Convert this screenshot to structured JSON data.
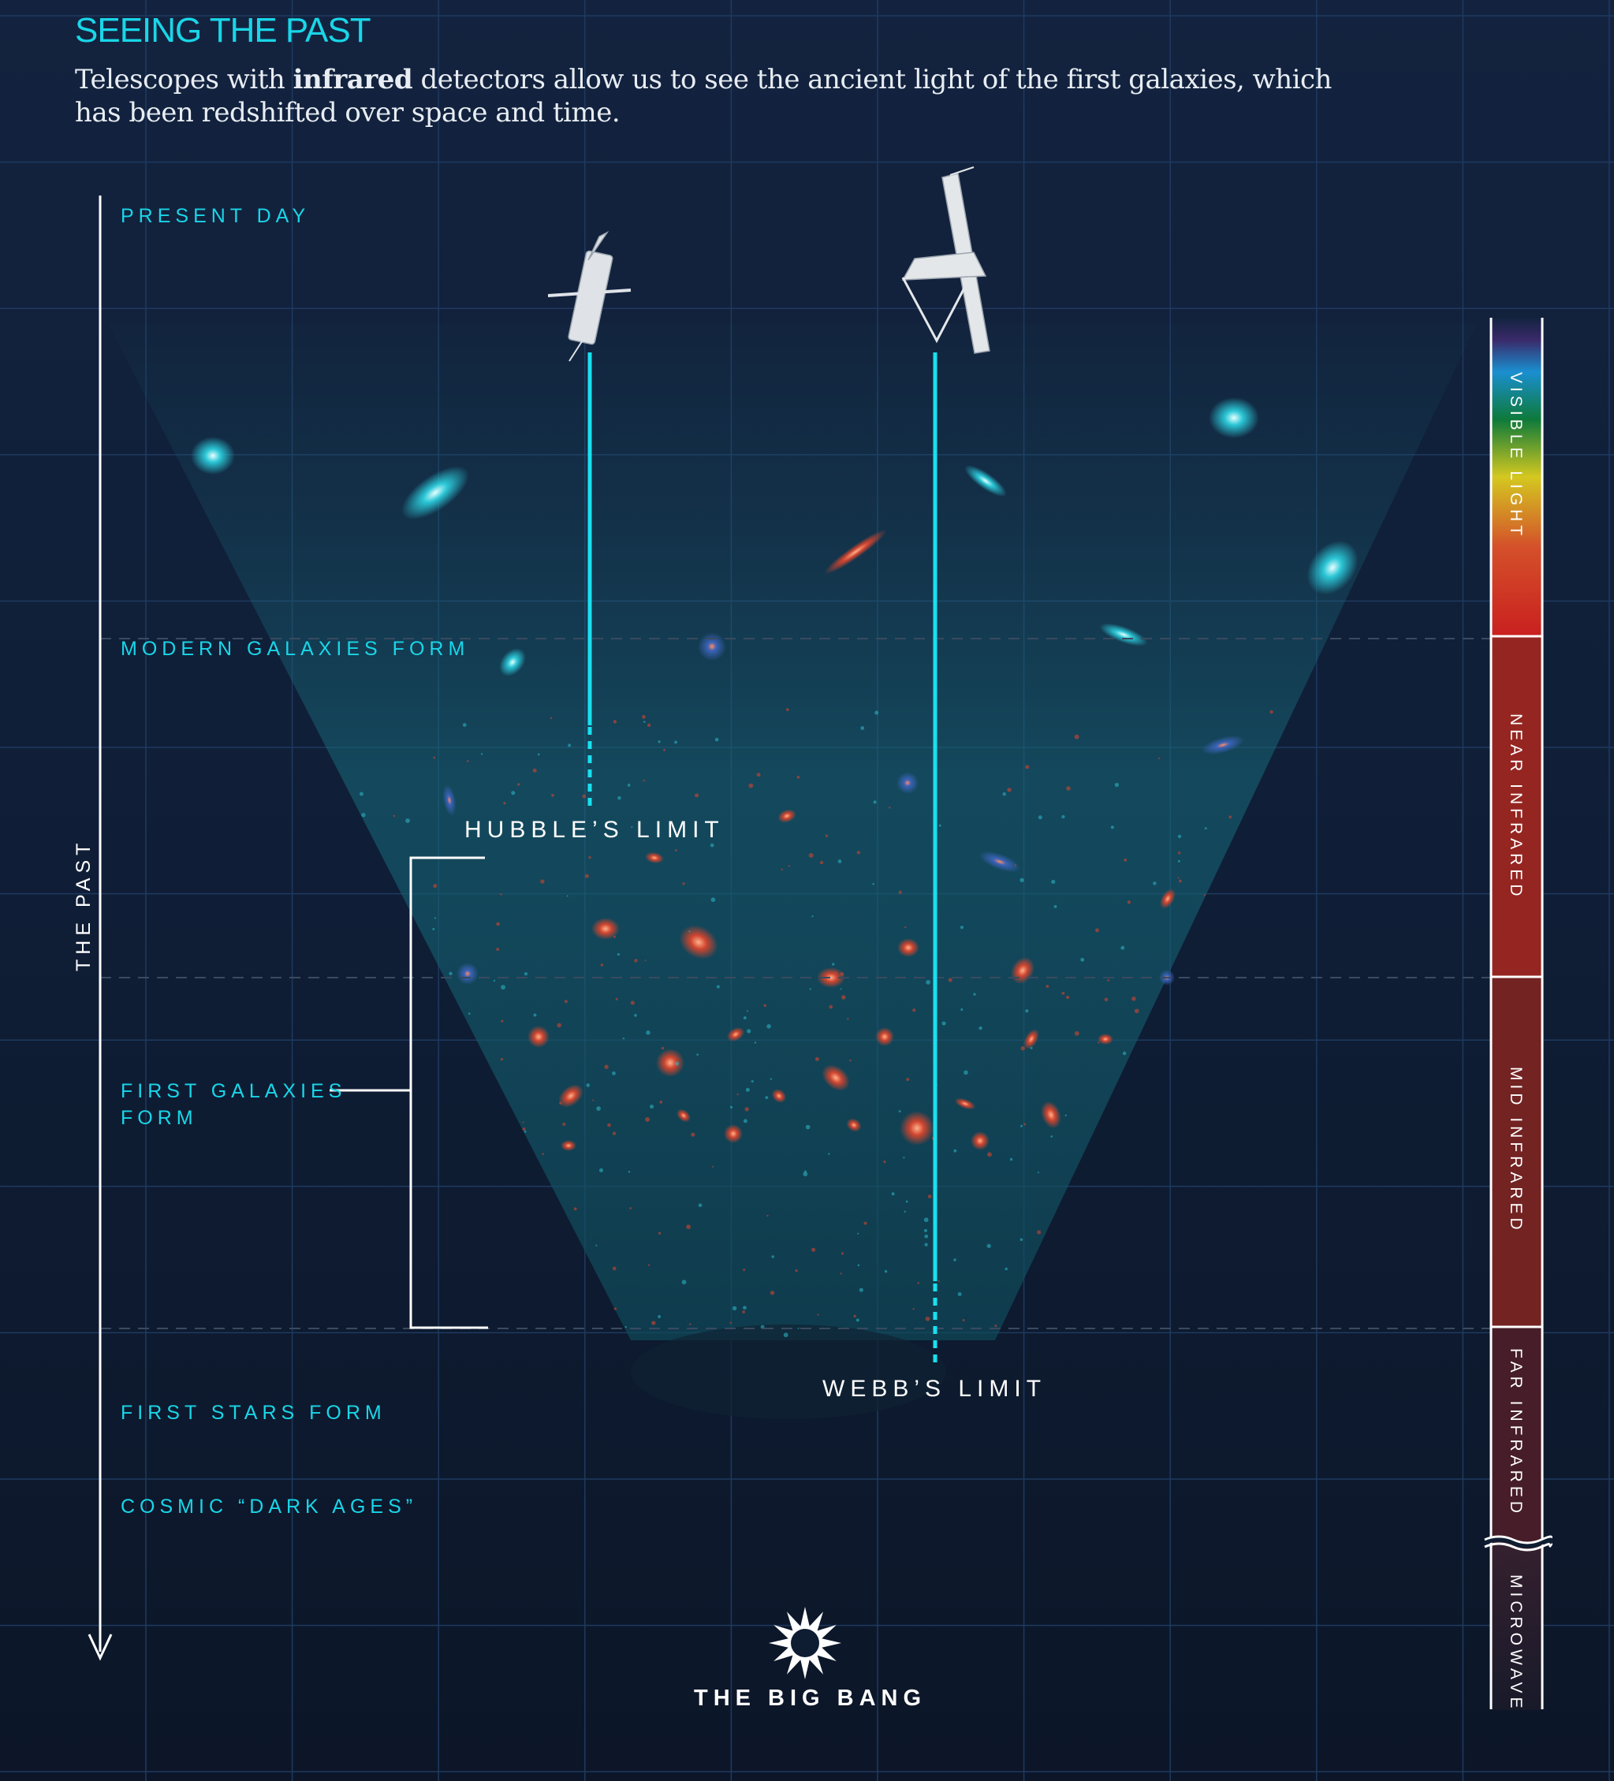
{
  "header": {
    "title": "SEEING THE PAST",
    "subtitle_pre": "Telescopes with ",
    "subtitle_bold": "infrared",
    "subtitle_post": " detectors allow us to see the ancient light of the first galaxies, which has been redshifted over space and time."
  },
  "timeline": {
    "axis_label": "THE PAST",
    "present_day": "PRESENT DAY",
    "modern_galaxies": "MODERN GALAXIES FORM",
    "first_galaxies_line1": "FIRST GALAXIES",
    "first_galaxies_line2": "FORM",
    "first_stars": "FIRST STARS FORM",
    "dark_ages": "COSMIC “DARK AGES”",
    "big_bang": "THE BIG BANG"
  },
  "telescopes": {
    "hubble_limit": "HUBBLE’S LIMIT",
    "webb_limit": "WEBB’S LIMIT"
  },
  "spectrum": {
    "bands": [
      "VISIBLE LIGHT",
      "NEAR INFRARED",
      "MID INFRARED",
      "FAR INFRARED",
      "MICROWAVE"
    ]
  },
  "colors": {
    "accent": "#19d6e8",
    "background": "#11213b",
    "near_infrared": "#952520",
    "mid_infrared": "#722322",
    "far_infrared": "#461d29",
    "microwave": "#2a1a2a"
  }
}
